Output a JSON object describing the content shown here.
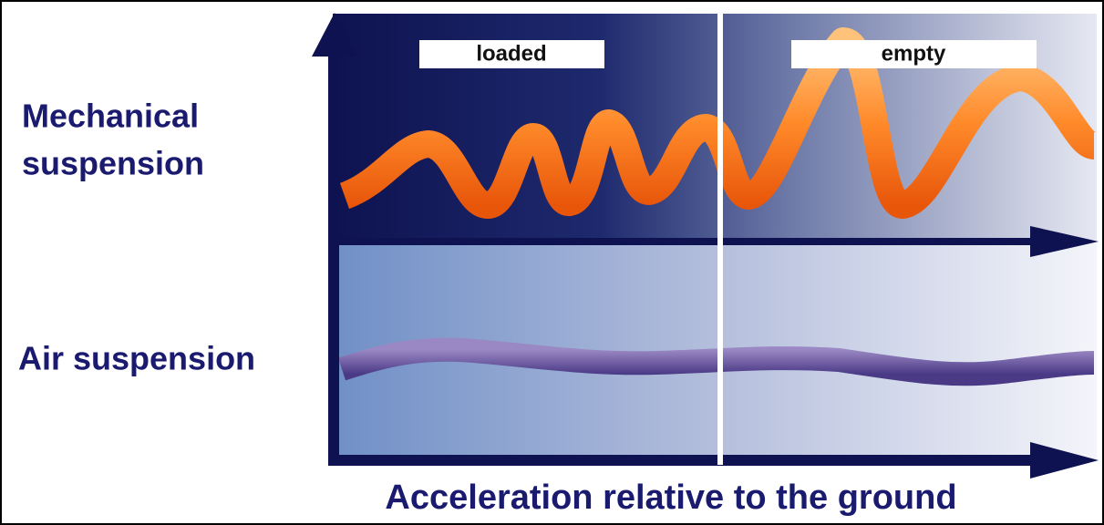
{
  "panel_labels": [
    "loaded",
    "empty"
  ],
  "row_labels": [
    {
      "lines": [
        "Mechanical",
        "suspension"
      ]
    },
    {
      "lines": [
        "Air suspension"
      ]
    }
  ],
  "axis_title": "Acceleration relative to the ground"
}
